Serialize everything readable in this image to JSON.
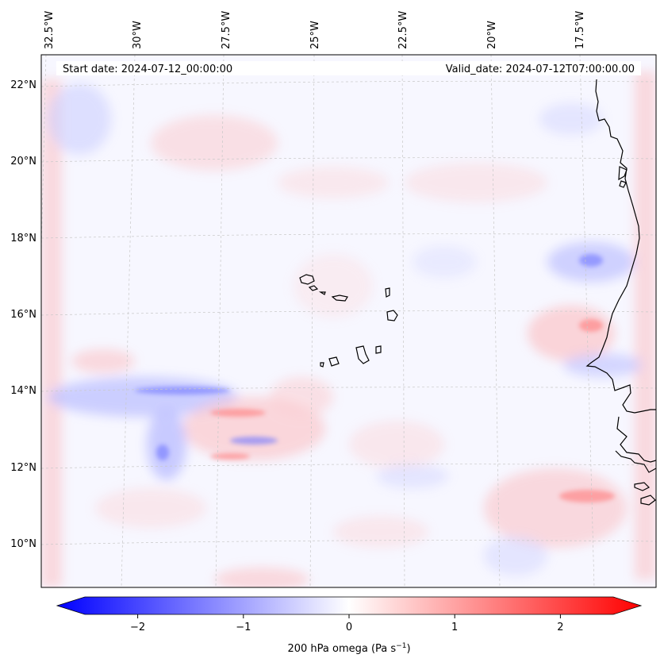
{
  "map": {
    "header": {
      "start_date": "Start date: 2024-07-12_00:00:00",
      "valid_date": "Valid_date: 2024-07-12T07:00:00.00"
    },
    "lon_labels": [
      "32.5°W",
      "30°W",
      "27.5°W",
      "25°W",
      "22.5°W",
      "20°W",
      "17.5°W"
    ],
    "lat_labels": [
      "22°N",
      "20°N",
      "18°N",
      "16°N",
      "14°N",
      "12°N",
      "10°N"
    ],
    "colorbar": {
      "min": -2.5,
      "max": 2.5,
      "ticks": [
        {
          "value": -2,
          "label": "−2"
        },
        {
          "value": -1,
          "label": "−1"
        },
        {
          "value": 0,
          "label": "0"
        },
        {
          "value": 1,
          "label": "1"
        },
        {
          "value": 2,
          "label": "2"
        }
      ],
      "label_prefix": "200 hPa omega (Pa s",
      "label_exp": "−1",
      "label_suffix": ")",
      "color_neg": "#0000ff",
      "color_zero": "#ffffff",
      "color_pos": "#ff0000"
    },
    "colors": {
      "coast": "#000000",
      "grid": "#c8c8c8",
      "header_bg": "#ffffff",
      "field_neg": "#8f94ff",
      "field_pos": "#ff9b9b"
    }
  }
}
